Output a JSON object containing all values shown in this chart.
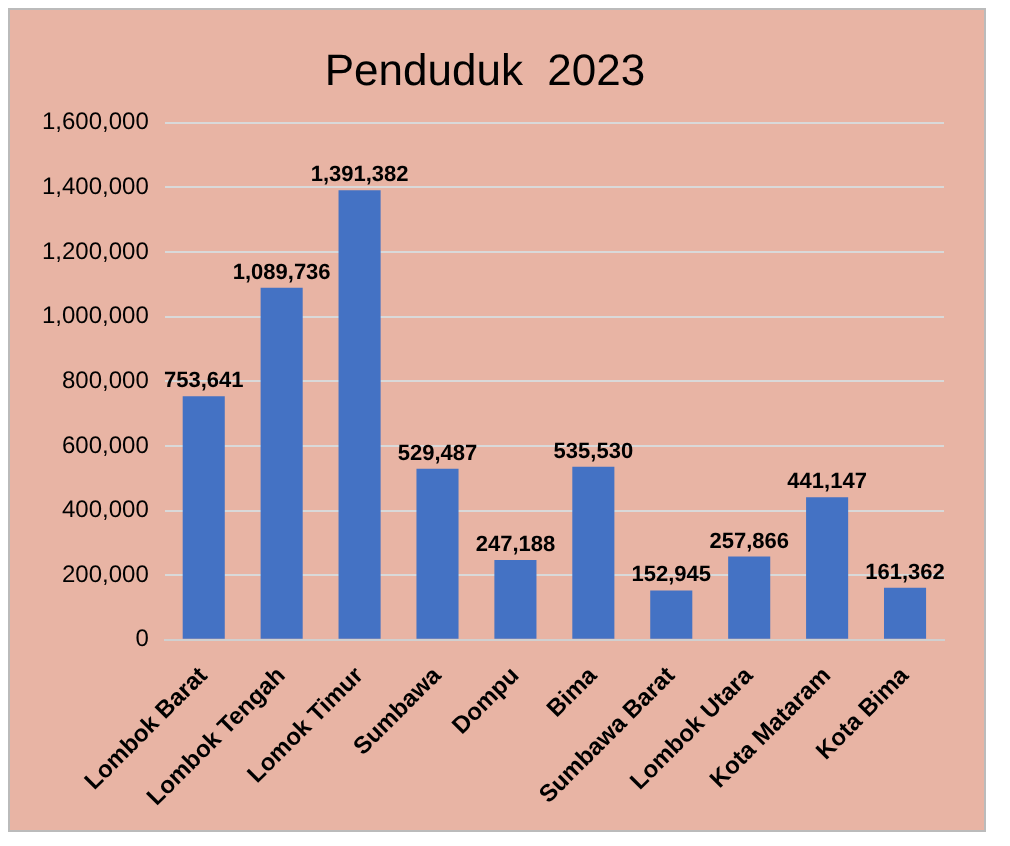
{
  "chart_data": {
    "type": "bar",
    "title": "Penduduk  2023",
    "categories": [
      "Lombok Barat",
      "Lombok Tengah",
      "Lomok Timur",
      "Sumbawa",
      "Dompu",
      "Bima",
      "Sumbawa Barat",
      "Lombok Utara",
      "Kota Mataram",
      "Kota Bima"
    ],
    "values": [
      753641,
      1089736,
      1391382,
      529487,
      247188,
      535530,
      152945,
      257866,
      441147,
      161362
    ],
    "color": "#4472c4",
    "ylim": [
      0,
      1600000
    ],
    "yticks": [
      {
        "value": 0,
        "label": "0"
      },
      {
        "value": 200000,
        "label": "200,000"
      },
      {
        "value": 400000,
        "label": "400,000"
      },
      {
        "value": 600000,
        "label": "600,000"
      },
      {
        "value": 800000,
        "label": "800,000"
      },
      {
        "value": 1000000,
        "label": "1,000,000"
      },
      {
        "value": 1200000,
        "label": "1,200,000"
      },
      {
        "value": 1400000,
        "label": "1,400,000"
      },
      {
        "value": 1600000,
        "label": "1,600,000"
      }
    ],
    "value_labels": [
      "753,641",
      "1,089,736",
      "1,391,382",
      "529,487",
      "247,188",
      "535,530",
      "152,945",
      "257,866",
      "441,147",
      "161,362"
    ],
    "grid": "y",
    "legend": false
  }
}
